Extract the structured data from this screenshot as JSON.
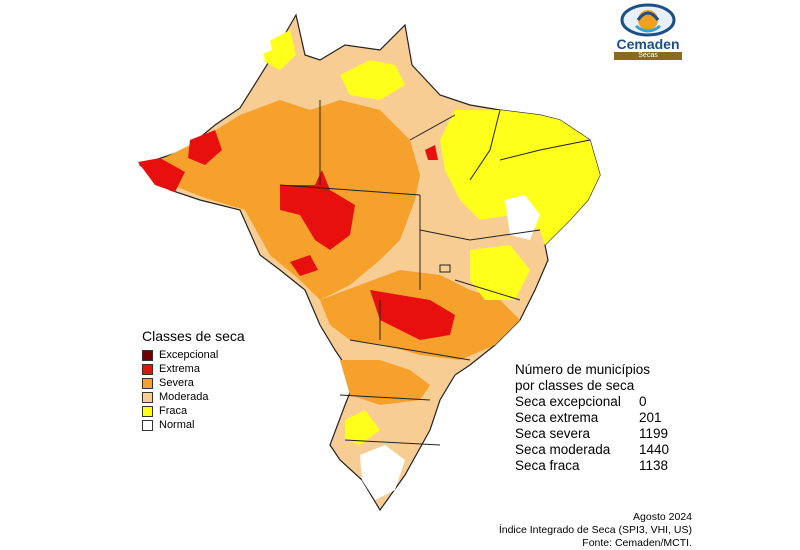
{
  "logo": {
    "name": "Cemaden",
    "band": "Secas"
  },
  "legend": {
    "title": "Classes de seca",
    "items": [
      {
        "label": "Excepcional",
        "color": "#730000"
      },
      {
        "label": "Extrema",
        "color": "#e8100f"
      },
      {
        "label": "Severa",
        "color": "#f5a12c"
      },
      {
        "label": "Moderada",
        "color": "#f8cd93"
      },
      {
        "label": "Fraca",
        "color": "#ffff1c"
      },
      {
        "label": "Normal",
        "color": "#ffffff"
      }
    ]
  },
  "stats": {
    "title_line1": "Número de municípios",
    "title_line2": "por classes de seca",
    "rows": [
      {
        "label": "Seca excepcional",
        "value": "0"
      },
      {
        "label": "Seca extrema",
        "value": "201"
      },
      {
        "label": "Seca severa",
        "value": "1199"
      },
      {
        "label": "Seca moderada",
        "value": "1440"
      },
      {
        "label": "Seca fraca",
        "value": "1138"
      }
    ]
  },
  "footer": {
    "date": "Agosto 2024",
    "index": "Índice Integrado de Seca (SPI3, VHI, US)",
    "source": "Fonte: Cemaden/MCTI."
  }
}
